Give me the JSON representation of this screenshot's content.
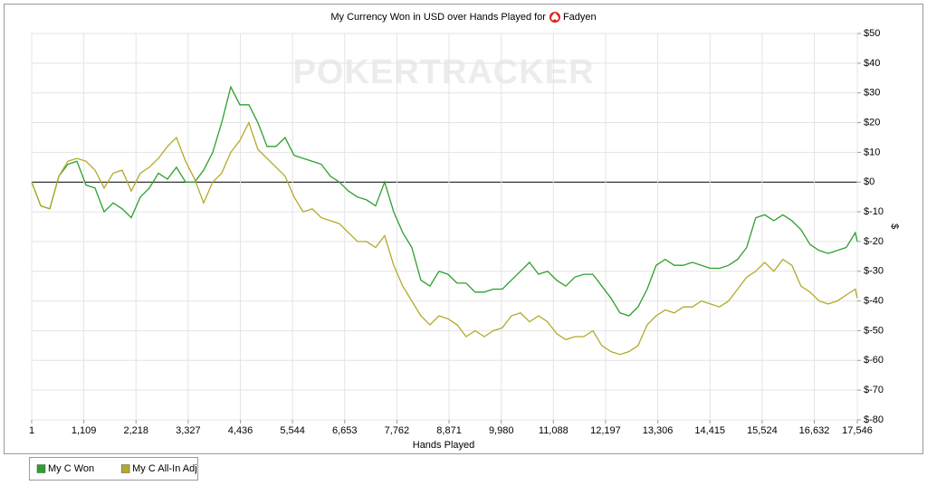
{
  "chart_data": {
    "type": "line",
    "title": "My Currency Won in USD over Hands Played for",
    "player": "Fadyen",
    "watermark": "POKERTRACKER",
    "x_label": "Hands Played",
    "y_label": "$",
    "grid": true,
    "legend": "bottom-left",
    "xlim": [
      1,
      17546
    ],
    "ylim": [
      -80,
      50
    ],
    "xticks": [
      1,
      {
        "value": 1109,
        "label": "1,109"
      },
      {
        "value": 2218,
        "label": "2,218"
      },
      {
        "value": 3327,
        "label": "3,327"
      },
      {
        "value": 4436,
        "label": "4,436"
      },
      {
        "value": 5544,
        "label": "5,544"
      },
      {
        "value": 6653,
        "label": "6,653"
      },
      {
        "value": 7762,
        "label": "7,762"
      },
      {
        "value": 8871,
        "label": "8,871"
      },
      {
        "value": 9980,
        "label": "9,980"
      },
      {
        "value": 11088,
        "label": "11,088"
      },
      {
        "value": 12197,
        "label": "12,197"
      },
      {
        "value": 13306,
        "label": "13,306"
      },
      {
        "value": 14415,
        "label": "14,415"
      },
      {
        "value": 15524,
        "label": "15,524"
      },
      {
        "value": 16632,
        "label": "16,632"
      },
      {
        "value": 17546,
        "label": "17,546"
      }
    ],
    "yticks": [
      {
        "value": 50,
        "label": "$50"
      },
      {
        "value": 40,
        "label": "$40"
      },
      {
        "value": 30,
        "label": "$30"
      },
      {
        "value": 20,
        "label": "$20"
      },
      {
        "value": 10,
        "label": "$10"
      },
      {
        "value": 0,
        "label": "$0"
      },
      {
        "value": -10,
        "label": "$-10"
      },
      {
        "value": -20,
        "label": "$-20"
      },
      {
        "value": -30,
        "label": "$-30"
      },
      {
        "value": -40,
        "label": "$-40"
      },
      {
        "value": -50,
        "label": "$-50"
      },
      {
        "value": -60,
        "label": "$-60"
      },
      {
        "value": -70,
        "label": "$-70"
      },
      {
        "value": -80,
        "label": "$-80"
      }
    ],
    "x": [
      1,
      193,
      386,
      578,
      770,
      963,
      1155,
      1347,
      1540,
      1732,
      1924,
      2117,
      2309,
      2501,
      2694,
      2886,
      3078,
      3271,
      3463,
      3655,
      3848,
      4040,
      4232,
      4425,
      4617,
      4809,
      5002,
      5194,
      5386,
      5579,
      5771,
      5963,
      6156,
      6348,
      6540,
      6733,
      6925,
      7117,
      7310,
      7502,
      7694,
      7887,
      8079,
      8271,
      8464,
      8656,
      8848,
      9041,
      9233,
      9425,
      9618,
      9810,
      10002,
      10195,
      10387,
      10579,
      10772,
      10964,
      11156,
      11349,
      11541,
      11733,
      11926,
      12118,
      12310,
      12503,
      12695,
      12887,
      13080,
      13272,
      13464,
      13657,
      13849,
      14041,
      14234,
      14426,
      14618,
      14811,
      15003,
      15195,
      15388,
      15580,
      15772,
      15965,
      16157,
      16349,
      16542,
      16734,
      16926,
      17119,
      17311,
      17504,
      17546
    ],
    "series": [
      {
        "name": "My C Won",
        "color": "#2ca02c",
        "values": [
          0,
          -8,
          -9,
          2,
          6,
          7,
          -1,
          -2,
          -10,
          -7,
          -9,
          -12,
          -5,
          -2,
          3,
          1,
          5,
          0,
          0,
          4,
          10,
          20,
          32,
          26,
          26,
          20,
          12,
          12,
          15,
          9,
          8,
          7,
          6,
          2,
          0,
          -3,
          -5,
          -6,
          -8,
          0,
          -10,
          -17,
          -22,
          -33,
          -35,
          -30,
          -31,
          -34,
          -34,
          -37,
          -37,
          -36,
          -36,
          -33,
          -30,
          -27,
          -31,
          -30,
          -33,
          -35,
          -32,
          -31,
          -31,
          -35,
          -39,
          -44,
          -45,
          -42,
          -36,
          -28,
          -26,
          -28,
          -28,
          -27,
          -28,
          -29,
          -29,
          -28,
          -26,
          -22,
          -12,
          -11,
          -13,
          -11,
          -13,
          -16,
          -21,
          -23,
          -24,
          -23,
          -22,
          -17,
          -20
        ]
      },
      {
        "name": "My C All-In Adj",
        "color": "#b5a82a",
        "values": [
          0,
          -8,
          -9,
          2,
          7,
          8,
          7,
          4,
          -2,
          3,
          4,
          -3,
          3,
          5,
          8,
          12,
          15,
          7,
          1,
          -7,
          0,
          3,
          10,
          14,
          20,
          11,
          8,
          5,
          2,
          -5,
          -10,
          -9,
          -12,
          -13,
          -14,
          -17,
          -20,
          -20,
          -22,
          -18,
          -28,
          -35,
          -40,
          -45,
          -48,
          -45,
          -46,
          -48,
          -52,
          -50,
          -52,
          -50,
          -49,
          -45,
          -44,
          -47,
          -45,
          -47,
          -51,
          -53,
          -52,
          -52,
          -50,
          -55,
          -57,
          -58,
          -57,
          -55,
          -48,
          -45,
          -43,
          -44,
          -42,
          -42,
          -40,
          -41,
          -42,
          -40,
          -36,
          -32,
          -30,
          -27,
          -30,
          -26,
          -28,
          -35,
          -37,
          -40,
          -41,
          -40,
          -38,
          -36,
          -39
        ]
      }
    ]
  }
}
